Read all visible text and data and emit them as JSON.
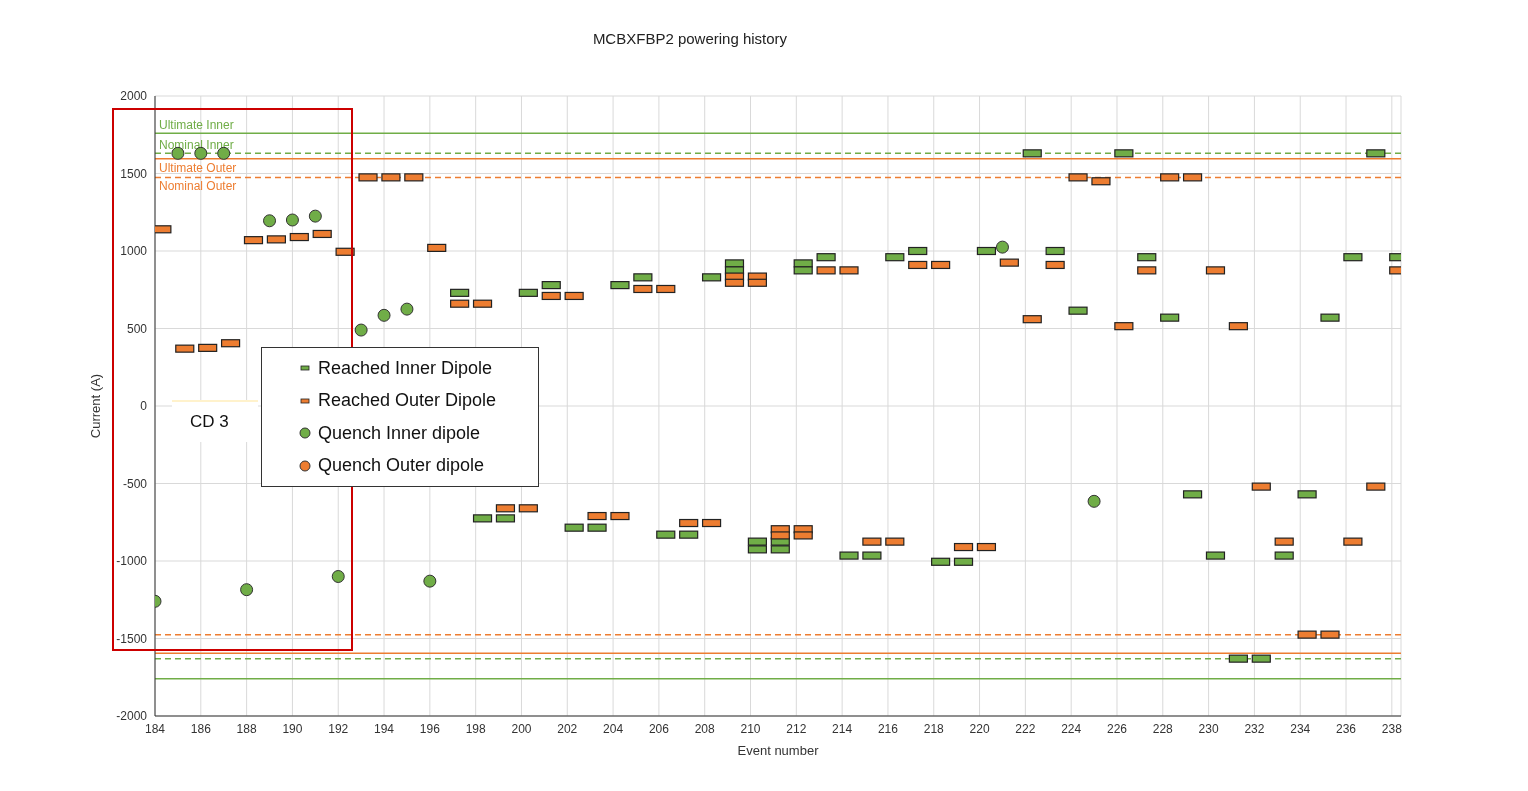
{
  "chart_data": {
    "type": "scatter",
    "title": "MCBXFBP2 powering history",
    "xlabel": "Event number",
    "ylabel": "Current (A)",
    "xlim": [
      184,
      238.4
    ],
    "xticks": [
      184,
      186,
      188,
      190,
      192,
      194,
      196,
      198,
      200,
      202,
      204,
      206,
      208,
      210,
      212,
      214,
      216,
      218,
      220,
      222,
      224,
      226,
      228,
      230,
      232,
      234,
      236,
      238
    ],
    "ylim": [
      -2000,
      2000
    ],
    "yticks": [
      -2000,
      -1500,
      -1000,
      -500,
      0,
      500,
      1000,
      1500,
      2000
    ],
    "grid": true,
    "legend": "left",
    "annotations": [
      "CD 3"
    ],
    "ref_lines": [
      {
        "axis": "y",
        "value": 1760,
        "label": "Ultimate Inner",
        "color": "#70ad47",
        "line_style": "solid"
      },
      {
        "axis": "y",
        "value": 1630,
        "label": "Nominal Inner",
        "color": "#70ad47",
        "line_style": "dashed"
      },
      {
        "axis": "y",
        "value": 1595,
        "label": "Ultimate Outer",
        "color": "#ed7d31",
        "line_style": "solid"
      },
      {
        "axis": "y",
        "value": 1475,
        "label": "Nominal Outer",
        "color": "#ed7d31",
        "line_style": "dashed"
      },
      {
        "axis": "y",
        "value": -1475,
        "color": "#ed7d31",
        "line_style": "dashed"
      },
      {
        "axis": "y",
        "value": -1595,
        "color": "#ed7d31",
        "line_style": "solid"
      },
      {
        "axis": "y",
        "value": -1630,
        "color": "#70ad47",
        "line_style": "dashed"
      },
      {
        "axis": "y",
        "value": -1760,
        "color": "#70ad47",
        "line_style": "solid"
      }
    ],
    "series": [
      {
        "name": "Reached Inner Dipole",
        "color": "#70ad47",
        "marker": "square",
        "x": [
          197.3,
          198.3,
          199.3,
          200.3,
          201.3,
          202.3,
          203.3,
          204.3,
          205.3,
          206.3,
          207.3,
          208.3,
          209.3,
          209.3,
          210.3,
          210.3,
          211.3,
          211.3,
          212.3,
          212.3,
          213.3,
          214.3,
          215.3,
          216.3,
          217.3,
          218.3,
          219.3,
          220.3,
          222.3,
          223.3,
          224.3,
          226.3,
          227.3,
          228.3,
          229.3,
          230.3,
          231.3,
          232.3,
          233.3,
          234.3,
          235.3,
          236.3,
          237.3,
          238.3
        ],
        "values": [
          730,
          -725,
          -725,
          730,
          780,
          -785,
          -785,
          780,
          830,
          -830,
          -830,
          830,
          920,
          875,
          -875,
          -925,
          -875,
          -925,
          920,
          875,
          960,
          -965,
          -965,
          960,
          1000,
          -1005,
          -1005,
          1000,
          1630,
          1000,
          615,
          1630,
          960,
          570,
          -570,
          -965,
          -1630,
          -1630,
          -965,
          -570,
          570,
          960,
          1630,
          960
        ]
      },
      {
        "name": "Reached Outer Dipole",
        "color": "#ed7d31",
        "marker": "square",
        "x": [
          184.3,
          185.3,
          186.3,
          187.3,
          188.3,
          189.3,
          190.3,
          191.3,
          192.3,
          193.3,
          194.3,
          195.3,
          196.3,
          197.3,
          198.3,
          199.3,
          200.3,
          201.3,
          202.3,
          203.3,
          204.3,
          205.3,
          206.3,
          207.3,
          208.3,
          209.3,
          209.3,
          210.3,
          210.3,
          211.3,
          211.3,
          212.3,
          212.3,
          213.3,
          214.3,
          215.3,
          216.3,
          217.3,
          218.3,
          219.3,
          220.3,
          221.3,
          222.3,
          223.3,
          224.3,
          225.3,
          226.3,
          227.3,
          228.3,
          229.3,
          230.3,
          231.3,
          232.3,
          233.3,
          234.3,
          235.3,
          236.3,
          237.3,
          238.3
        ],
        "values": [
          1140,
          370,
          375,
          405,
          1070,
          1075,
          1090,
          1110,
          995,
          1475,
          1475,
          1475,
          1020,
          660,
          660,
          -660,
          -660,
          710,
          710,
          -710,
          -710,
          755,
          755,
          -755,
          -755,
          835,
          795,
          835,
          795,
          -795,
          -835,
          -795,
          -835,
          875,
          875,
          -875,
          -875,
          910,
          910,
          -910,
          -910,
          925,
          560,
          910,
          1475,
          1450,
          515,
          875,
          1475,
          1475,
          875,
          515,
          -520,
          -875,
          -1475,
          -1475,
          -875,
          -520,
          875
        ]
      },
      {
        "name": "Quench Inner dipole",
        "color": "#70ad47",
        "marker": "circle",
        "x": [
          184,
          185,
          186,
          187,
          188,
          189,
          190,
          191,
          192,
          193,
          194,
          195,
          196,
          221,
          225
        ],
        "values": [
          -1260,
          1630,
          1630,
          1630,
          -1185,
          1195,
          1200,
          1225,
          -1100,
          490,
          585,
          625,
          -1130,
          1025,
          -615
        ]
      },
      {
        "name": "Quench Outer dipole",
        "color": "#ed7d31",
        "marker": "circle"
      }
    ]
  }
}
